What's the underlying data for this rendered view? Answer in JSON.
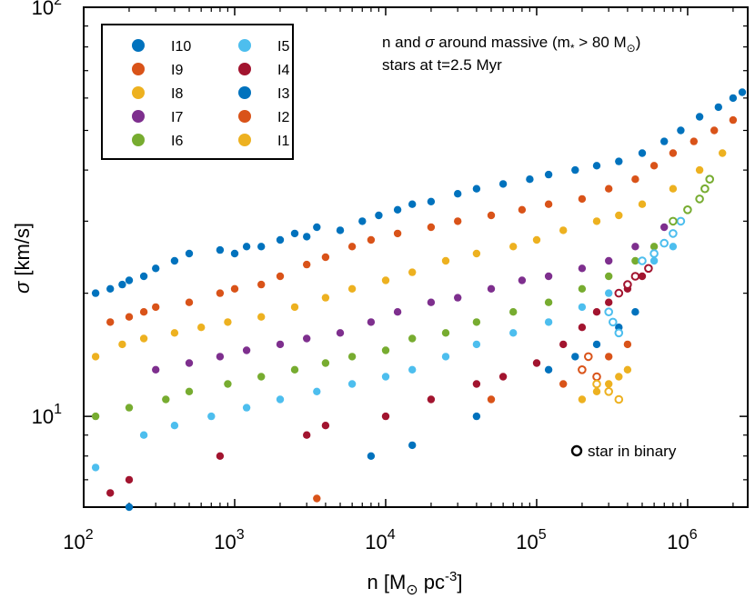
{
  "chart_data": {
    "type": "scatter",
    "xscale": "log",
    "yscale": "log",
    "xlim": [
      100,
      2500000
    ],
    "ylim": [
      6,
      100
    ],
    "xlabel_main": "n [M",
    "xlabel_sub": "⊙",
    "xlabel_tail": " pc",
    "xlabel_sup": "-3",
    "xlabel_end": "]",
    "ylabel_sym": "σ",
    "ylabel_text": " [km/s]",
    "x_ticks": [
      {
        "base": "10",
        "exp": "2",
        "value": 100
      },
      {
        "base": "10",
        "exp": "3",
        "value": 1000
      },
      {
        "base": "10",
        "exp": "4",
        "value": 10000
      },
      {
        "base": "10",
        "exp": "5",
        "value": 100000
      },
      {
        "base": "10",
        "exp": "6",
        "value": 1000000
      }
    ],
    "y_ticks": [
      {
        "base": "10",
        "exp": "1",
        "value": 10
      },
      {
        "base": "10",
        "exp": "2",
        "value": 100
      }
    ],
    "annotation": {
      "line1_a": "n and ",
      "line1_sym": "σ",
      "line1_b": " around massive (m",
      "line1_sub": "*",
      "line1_c": " > 80 M",
      "line1_sub2": "⊙",
      "line1_d": ")",
      "line2": "stars at t=2.5 Myr"
    },
    "binary_legend_label": "star in binary",
    "colors": {
      "blue": "#0072BD",
      "orange": "#D95319",
      "yellow": "#EDB120",
      "purple": "#7E2F8E",
      "green": "#77AC30",
      "cyan": "#4DBEEE",
      "red": "#A2142F"
    },
    "series": [
      {
        "name": "I10",
        "color": "#0072BD",
        "points": [
          [
            120,
            20
          ],
          [
            150,
            20.5
          ],
          [
            180,
            21
          ],
          [
            200,
            21.5
          ],
          [
            250,
            22
          ],
          [
            300,
            23
          ],
          [
            400,
            24
          ],
          [
            500,
            25
          ],
          [
            800,
            25.5
          ],
          [
            1000,
            25
          ],
          [
            1200,
            26
          ],
          [
            1500,
            26
          ],
          [
            2000,
            27
          ],
          [
            2500,
            28
          ],
          [
            3000,
            27.5
          ],
          [
            3500,
            29
          ],
          [
            5000,
            28.5
          ],
          [
            7000,
            30
          ],
          [
            9000,
            31
          ],
          [
            12000,
            32
          ],
          [
            15000,
            33
          ],
          [
            20000,
            33.5
          ],
          [
            30000,
            35
          ],
          [
            40000,
            36
          ],
          [
            60000,
            37
          ],
          [
            90000,
            38
          ],
          [
            120000,
            39
          ],
          [
            180000,
            40
          ],
          [
            250000,
            41
          ],
          [
            350000,
            42
          ],
          [
            500000,
            44
          ],
          [
            700000,
            47
          ],
          [
            900000,
            50
          ],
          [
            1200000,
            54
          ],
          [
            1600000,
            57
          ],
          [
            2000000,
            60
          ],
          [
            2300000,
            62
          ]
        ]
      },
      {
        "name": "I9",
        "color": "#D95319",
        "points": [
          [
            150,
            17
          ],
          [
            200,
            17.5
          ],
          [
            250,
            18
          ],
          [
            300,
            18.5
          ],
          [
            500,
            19
          ],
          [
            800,
            20
          ],
          [
            1000,
            20.5
          ],
          [
            1500,
            21
          ],
          [
            2000,
            22
          ],
          [
            3000,
            23.5
          ],
          [
            4000,
            24.5
          ],
          [
            6000,
            26
          ],
          [
            8000,
            27
          ],
          [
            12000,
            28
          ],
          [
            20000,
            29
          ],
          [
            30000,
            30
          ],
          [
            50000,
            31
          ],
          [
            80000,
            32
          ],
          [
            120000,
            33
          ],
          [
            200000,
            34
          ],
          [
            300000,
            36
          ],
          [
            450000,
            38
          ],
          [
            600000,
            41
          ],
          [
            800000,
            44
          ],
          [
            1100000,
            47
          ],
          [
            1500000,
            50
          ],
          [
            2000000,
            53
          ]
        ]
      },
      {
        "name": "I8",
        "color": "#EDB120",
        "points": [
          [
            120,
            14
          ],
          [
            180,
            15
          ],
          [
            250,
            15.5
          ],
          [
            400,
            16
          ],
          [
            600,
            16.5
          ],
          [
            900,
            17
          ],
          [
            1500,
            17.5
          ],
          [
            2500,
            18.5
          ],
          [
            4000,
            19.5
          ],
          [
            6000,
            20.5
          ],
          [
            10000,
            21.5
          ],
          [
            15000,
            22.5
          ],
          [
            25000,
            24
          ],
          [
            40000,
            25
          ],
          [
            70000,
            26
          ],
          [
            100000,
            27
          ],
          [
            150000,
            28.5
          ],
          [
            250000,
            30
          ],
          [
            350000,
            31
          ],
          [
            500000,
            33
          ],
          [
            800000,
            36
          ],
          [
            1200000,
            40
          ],
          [
            1700000,
            44
          ]
        ]
      },
      {
        "name": "I7",
        "color": "#7E2F8E",
        "points": [
          [
            300,
            13
          ],
          [
            500,
            13.5
          ],
          [
            800,
            14
          ],
          [
            1200,
            14.5
          ],
          [
            2000,
            15
          ],
          [
            3000,
            15.5
          ],
          [
            5000,
            16
          ],
          [
            8000,
            17
          ],
          [
            12000,
            18
          ],
          [
            20000,
            19
          ],
          [
            30000,
            19.5
          ],
          [
            50000,
            20.5
          ],
          [
            80000,
            21.5
          ],
          [
            120000,
            22
          ],
          [
            200000,
            23
          ],
          [
            300000,
            24
          ],
          [
            450000,
            26
          ],
          [
            700000,
            29
          ],
          [
            1000000,
            32
          ]
        ]
      },
      {
        "name": "I6",
        "color": "#77AC30",
        "points": [
          [
            120,
            10
          ],
          [
            200,
            10.5
          ],
          [
            350,
            11
          ],
          [
            500,
            11.5
          ],
          [
            900,
            12
          ],
          [
            1500,
            12.5
          ],
          [
            2500,
            13
          ],
          [
            4000,
            13.5
          ],
          [
            6000,
            14
          ],
          [
            10000,
            14.5
          ],
          [
            15000,
            15.5
          ],
          [
            25000,
            16
          ],
          [
            40000,
            17
          ],
          [
            70000,
            18
          ],
          [
            120000,
            19
          ],
          [
            200000,
            20.5
          ],
          [
            300000,
            22
          ],
          [
            450000,
            24
          ],
          [
            600000,
            26
          ],
          [
            800000,
            28
          ]
        ]
      },
      {
        "name": "I5",
        "color": "#4DBEEE",
        "points": [
          [
            120,
            7.5
          ],
          [
            250,
            9
          ],
          [
            400,
            9.5
          ],
          [
            700,
            10
          ],
          [
            1200,
            10.5
          ],
          [
            2000,
            11
          ],
          [
            3500,
            11.5
          ],
          [
            6000,
            12
          ],
          [
            10000,
            12.5
          ],
          [
            15000,
            13
          ],
          [
            25000,
            14
          ],
          [
            40000,
            15
          ],
          [
            70000,
            16
          ],
          [
            120000,
            17
          ],
          [
            200000,
            18.5
          ],
          [
            300000,
            20
          ],
          [
            450000,
            22
          ],
          [
            600000,
            24
          ],
          [
            800000,
            26
          ]
        ]
      },
      {
        "name": "I4",
        "color": "#A2142F",
        "points": [
          [
            150,
            6.5
          ],
          [
            200,
            7
          ],
          [
            800,
            8
          ],
          [
            3000,
            9
          ],
          [
            4000,
            9.5
          ],
          [
            10000,
            10
          ],
          [
            20000,
            11
          ],
          [
            40000,
            12
          ],
          [
            60000,
            12.5
          ],
          [
            100000,
            13.5
          ],
          [
            150000,
            15
          ],
          [
            200000,
            16.5
          ],
          [
            250000,
            18
          ],
          [
            300000,
            19
          ],
          [
            400000,
            20.5
          ],
          [
            500000,
            22
          ]
        ]
      },
      {
        "name": "I3",
        "color": "#0072BD",
        "points": [
          [
            200,
            6
          ],
          [
            8000,
            8
          ],
          [
            15000,
            8.5
          ],
          [
            40000,
            10
          ],
          [
            120000,
            13
          ],
          [
            180000,
            14
          ],
          [
            250000,
            15
          ],
          [
            350000,
            16.5
          ],
          [
            450000,
            18
          ]
        ]
      },
      {
        "name": "I2",
        "color": "#D95319",
        "points": [
          [
            3500,
            6.3
          ],
          [
            50000,
            11
          ],
          [
            150000,
            12
          ],
          [
            200000,
            13
          ],
          [
            300000,
            14
          ],
          [
            400000,
            15
          ]
        ]
      },
      {
        "name": "I1",
        "color": "#EDB120",
        "points": [
          [
            200000,
            11
          ],
          [
            250000,
            11.5
          ],
          [
            300000,
            12
          ],
          [
            350000,
            12.5
          ],
          [
            400000,
            13
          ]
        ]
      }
    ],
    "binary_points": [
      {
        "color": "#4DBEEE",
        "points": [
          [
            500000,
            24
          ],
          [
            600000,
            25
          ],
          [
            700000,
            26.5
          ],
          [
            800000,
            28
          ],
          [
            900000,
            30
          ]
        ]
      },
      {
        "color": "#77AC30",
        "points": [
          [
            800000,
            30
          ],
          [
            1000000,
            32
          ],
          [
            1200000,
            34
          ],
          [
            1300000,
            36
          ],
          [
            1400000,
            38
          ]
        ]
      },
      {
        "color": "#D95319",
        "points": [
          [
            200000,
            13
          ],
          [
            220000,
            14
          ],
          [
            250000,
            12.5
          ]
        ]
      },
      {
        "color": "#EDB120",
        "points": [
          [
            250000,
            12
          ],
          [
            300000,
            11.5
          ],
          [
            350000,
            11
          ]
        ]
      },
      {
        "color": "#A2142F",
        "points": [
          [
            350000,
            20
          ],
          [
            400000,
            21
          ],
          [
            450000,
            22
          ],
          [
            550000,
            23
          ]
        ]
      },
      {
        "color": "#4DBEEE",
        "points": [
          [
            300000,
            18
          ],
          [
            320000,
            17
          ],
          [
            350000,
            16
          ]
        ]
      }
    ],
    "legend": {
      "col1": [
        {
          "label": "I10",
          "color": "#0072BD"
        },
        {
          "label": "I9",
          "color": "#D95319"
        },
        {
          "label": "I8",
          "color": "#EDB120"
        },
        {
          "label": "I7",
          "color": "#7E2F8E"
        },
        {
          "label": "I6",
          "color": "#77AC30"
        }
      ],
      "col2": [
        {
          "label": "I5",
          "color": "#4DBEEE"
        },
        {
          "label": "I4",
          "color": "#A2142F"
        },
        {
          "label": "I3",
          "color": "#0072BD"
        },
        {
          "label": "I2",
          "color": "#D95319"
        },
        {
          "label": "I1",
          "color": "#EDB120"
        }
      ]
    }
  }
}
